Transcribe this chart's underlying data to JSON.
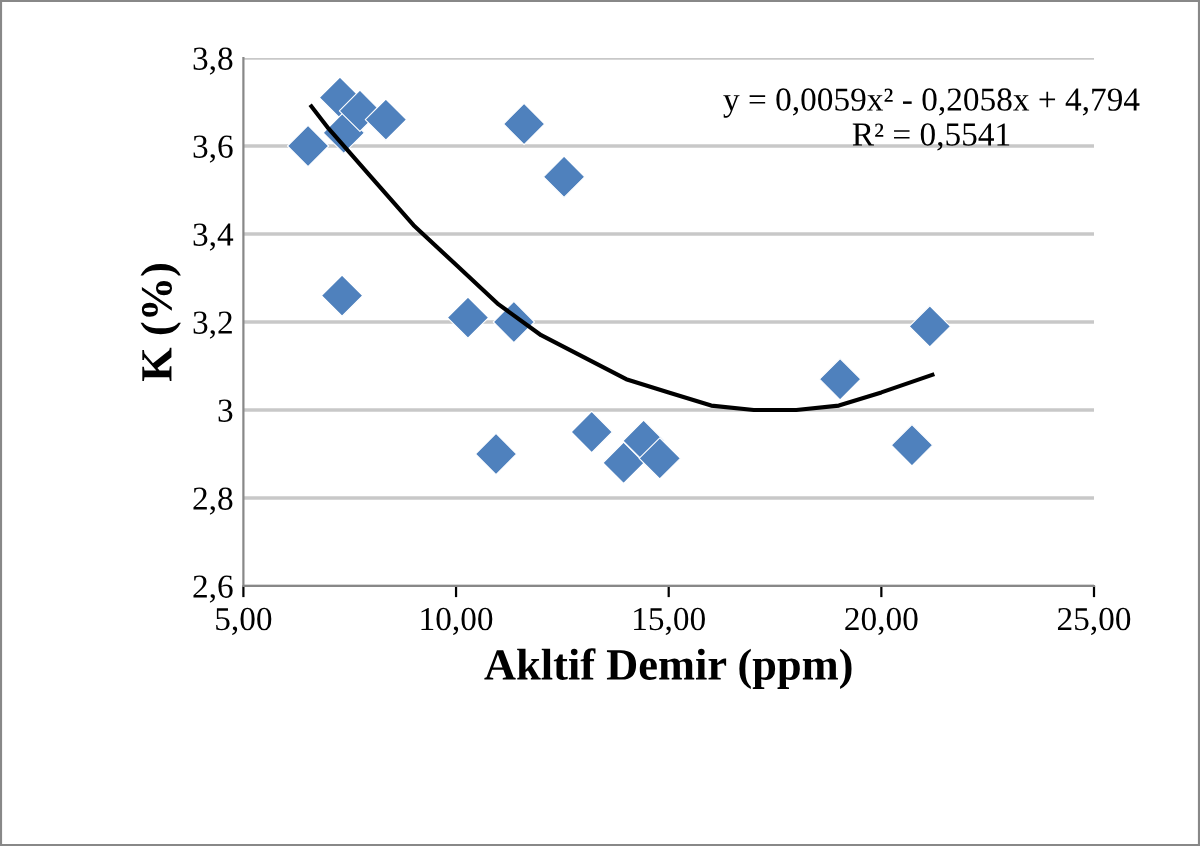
{
  "chart_data": {
    "type": "scatter",
    "xlabel": "Akltif Demir (ppm)",
    "ylabel": "K (%)",
    "series": [
      {
        "color": "#4f81bd",
        "marker": "diamond",
        "x": [
          6.52,
          7.27,
          7.36,
          7.74,
          8.35,
          7.32,
          11.6,
          12.54,
          10.28,
          11.36,
          10.94,
          13.19,
          13.94,
          14.41,
          14.79,
          19.03,
          20.72,
          21.14
        ],
        "values": [
          3.6,
          3.71,
          3.63,
          3.68,
          3.66,
          3.26,
          3.65,
          3.53,
          3.21,
          3.2,
          2.9,
          2.95,
          2.88,
          2.93,
          2.89,
          3.07,
          2.92,
          3.19
        ]
      },
      {
        "type": "line",
        "color": "#000000",
        "marker": "none",
        "x": [
          6.6,
          7,
          8,
          9,
          10,
          11,
          12,
          13,
          14,
          15,
          16,
          17,
          18,
          19,
          20,
          21.2
        ],
        "values": [
          3.69,
          3.64,
          3.53,
          3.42,
          3.33,
          3.24,
          3.17,
          3.12,
          3.07,
          3.04,
          3.01,
          3.0,
          3.0,
          3.01,
          3.04,
          3.08
        ]
      }
    ],
    "xlim": [
      5,
      25
    ],
    "xticks": [
      {
        "value": 5,
        "label": "5,00"
      },
      {
        "value": 10,
        "label": "10,00"
      },
      {
        "value": 15,
        "label": "15,00"
      },
      {
        "value": 20,
        "label": "20,00"
      },
      {
        "value": 25,
        "label": "25,00"
      }
    ],
    "ylim": [
      2.6,
      3.8
    ],
    "yticks": [
      {
        "value": 2.6,
        "label": "2,6"
      },
      {
        "value": 2.8,
        "label": "2,8"
      },
      {
        "value": 3,
        "label": "3"
      },
      {
        "value": 3.2,
        "label": "3,2"
      },
      {
        "value": 3.4,
        "label": "3,4"
      },
      {
        "value": 3.6,
        "label": "3,6"
      },
      {
        "value": 3.8,
        "label": "3,8"
      }
    ],
    "grid": "y",
    "annotations": [
      "y = 0,0059x² - 0,2058x + 4,794\nR² = 0,5541"
    ]
  }
}
